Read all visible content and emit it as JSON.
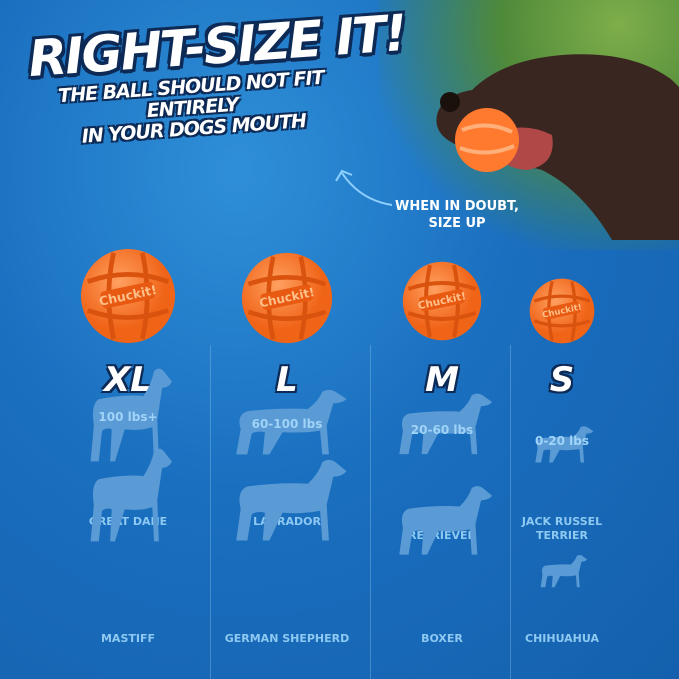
{
  "headline": {
    "title": "RIGHT-SIZE IT!",
    "subtitle_line1": "THE BALL SHOULD NOT FIT ENTIRELY",
    "subtitle_line2": "IN YOUR DOGS MOUTH"
  },
  "tip": {
    "line1": "WHEN IN DOUBT,",
    "line2": "SIZE UP"
  },
  "ball_logo": "Chuckit!",
  "colors": {
    "background": "#1a6fbf",
    "ball": "#ff7a2e",
    "silhouette": "#5b9bd5",
    "text_accent": "#8ec9f2"
  },
  "sizes": [
    {
      "size": "XL",
      "weight": "100 lbs+",
      "breeds": [
        "GREAT DANE",
        "MASTIFF"
      ]
    },
    {
      "size": "L",
      "weight": "60-100 lbs",
      "breeds": [
        "LABRADOR",
        "GERMAN SHEPHERD"
      ]
    },
    {
      "size": "M",
      "weight": "20-60 lbs",
      "breeds": [
        "GOLDEN RETRIEVER",
        "BOXER"
      ]
    },
    {
      "size": "S",
      "weight": "0-20 lbs",
      "breeds": [
        "JACK RUSSEL TERRIER",
        "CHIHUAHUA"
      ]
    }
  ]
}
